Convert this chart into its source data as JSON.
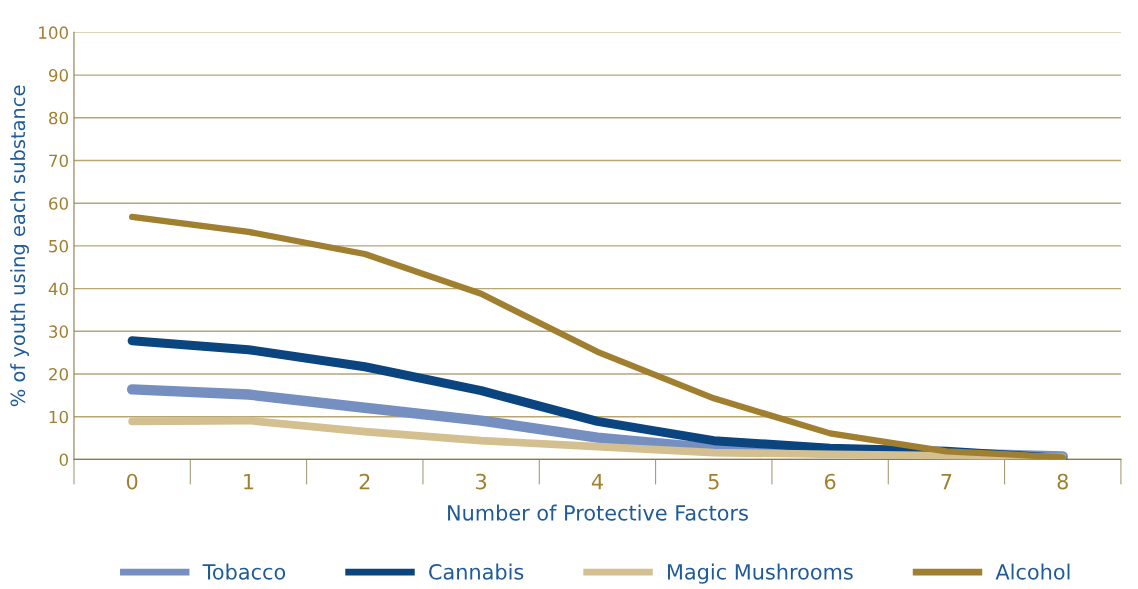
{
  "chart_data": {
    "type": "line",
    "xlabel": "Number of Protective Factors",
    "ylabel": "% of youth using each substance",
    "categories": [
      "0",
      "1",
      "2",
      "3",
      "4",
      "5",
      "6",
      "7",
      "8"
    ],
    "series": [
      {
        "name": "Tobacco",
        "color": "#7590c0",
        "values": [
          16.4,
          15.2,
          12.1,
          9.1,
          5.1,
          2.6,
          1.6,
          1.4,
          0.7
        ]
      },
      {
        "name": "Cannabis",
        "color": "#0a4580",
        "values": [
          27.8,
          25.7,
          21.7,
          16.1,
          8.9,
          4.4,
          2.6,
          1.9,
          0.2
        ]
      },
      {
        "name": "Magic Mushrooms",
        "color": "#d3bf8f",
        "values": [
          8.9,
          9.1,
          6.5,
          4.4,
          3.0,
          1.6,
          1.2,
          0.9,
          0.5
        ]
      },
      {
        "name": "Alcohol",
        "color": "#a08030",
        "values": [
          56.8,
          53.3,
          48.1,
          38.8,
          25.2,
          14.3,
          6.1,
          1.9,
          0.5
        ]
      }
    ],
    "ylim": [
      0,
      100
    ],
    "yticks": [
      0,
      10,
      20,
      30,
      40,
      50,
      60,
      70,
      80,
      90,
      100
    ],
    "grid": "y",
    "legend": "bottom",
    "marker": "none",
    "line_style": "solid"
  }
}
